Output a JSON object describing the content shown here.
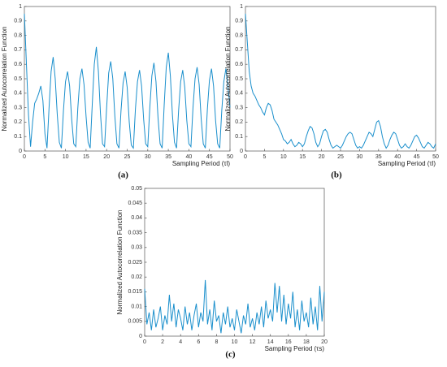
{
  "chart_data": [
    {
      "type": "line",
      "panel_label": "(a)",
      "y_label": "Normalized Autocorrelation Function",
      "x_label": "Sampling Period (τl)",
      "xlim": [
        0,
        50
      ],
      "xticks": [
        0,
        5,
        10,
        15,
        20,
        25,
        30,
        35,
        40,
        45,
        50
      ],
      "ylim": [
        0,
        1
      ],
      "yticks": [
        0,
        0.1,
        0.2,
        0.3,
        0.4,
        0.5,
        0.6,
        0.7,
        0.8,
        0.9,
        1
      ],
      "x": [
        0,
        0.5,
        1,
        1.5,
        2,
        2.5,
        3,
        3.5,
        4,
        4.5,
        5,
        5.5,
        6,
        6.5,
        7,
        7.5,
        8,
        8.5,
        9,
        9.5,
        10,
        10.5,
        11,
        11.5,
        12,
        12.5,
        13,
        13.5,
        14,
        14.5,
        15,
        15.5,
        16,
        16.5,
        17,
        17.5,
        18,
        18.5,
        19,
        19.5,
        20,
        20.5,
        21,
        21.5,
        22,
        22.5,
        23,
        23.5,
        24,
        24.5,
        25,
        25.5,
        26,
        26.5,
        27,
        27.5,
        28,
        28.5,
        29,
        29.5,
        30,
        30.5,
        31,
        31.5,
        32,
        32.5,
        33,
        33.5,
        34,
        34.5,
        35,
        35.5,
        36,
        36.5,
        37,
        37.5,
        38,
        38.5,
        39,
        39.5,
        40,
        40.5,
        41,
        41.5,
        42,
        42.5,
        43,
        43.5,
        44,
        44.5,
        45,
        45.5,
        46,
        46.5,
        47,
        47.5,
        48,
        48.5,
        49,
        49.5,
        50
      ],
      "series": [
        {
          "color": "#1a8fcc",
          "values": [
            0.95,
            0.6,
            0.25,
            0.03,
            0.2,
            0.33,
            0.36,
            0.4,
            0.45,
            0.35,
            0.12,
            0.02,
            0.3,
            0.55,
            0.65,
            0.5,
            0.25,
            0.06,
            0.02,
            0.28,
            0.48,
            0.55,
            0.45,
            0.22,
            0.05,
            0.03,
            0.3,
            0.5,
            0.57,
            0.46,
            0.24,
            0.06,
            0.02,
            0.32,
            0.6,
            0.72,
            0.55,
            0.26,
            0.05,
            0.03,
            0.3,
            0.54,
            0.62,
            0.5,
            0.24,
            0.05,
            0.02,
            0.28,
            0.47,
            0.55,
            0.44,
            0.2,
            0.04,
            0.02,
            0.29,
            0.48,
            0.56,
            0.45,
            0.22,
            0.05,
            0.03,
            0.3,
            0.52,
            0.61,
            0.48,
            0.23,
            0.05,
            0.02,
            0.32,
            0.58,
            0.68,
            0.52,
            0.25,
            0.06,
            0.02,
            0.28,
            0.48,
            0.56,
            0.44,
            0.21,
            0.05,
            0.03,
            0.3,
            0.5,
            0.58,
            0.46,
            0.22,
            0.05,
            0.02,
            0.29,
            0.49,
            0.57,
            0.45,
            0.21,
            0.05,
            0.02,
            0.28,
            0.48,
            0.57,
            0.45,
            0.3
          ]
        }
      ]
    },
    {
      "type": "line",
      "panel_label": "(b)",
      "y_label": "Normalized Autocorrelation Function",
      "x_label": "Sampling Period (τl)",
      "xlim": [
        0,
        50
      ],
      "xticks": [
        0,
        5,
        10,
        15,
        20,
        25,
        30,
        35,
        40,
        45,
        50
      ],
      "ylim": [
        0,
        1
      ],
      "yticks": [
        0,
        0.1,
        0.2,
        0.3,
        0.4,
        0.5,
        0.6,
        0.7,
        0.8,
        0.9,
        1
      ],
      "x": [
        0,
        0.5,
        1,
        1.5,
        2,
        2.5,
        3,
        3.5,
        4,
        4.5,
        5,
        5.5,
        6,
        6.5,
        7,
        7.5,
        8,
        8.5,
        9,
        9.5,
        10,
        10.5,
        11,
        11.5,
        12,
        12.5,
        13,
        13.5,
        14,
        14.5,
        15,
        15.5,
        16,
        16.5,
        17,
        17.5,
        18,
        18.5,
        19,
        19.5,
        20,
        20.5,
        21,
        21.5,
        22,
        22.5,
        23,
        23.5,
        24,
        24.5,
        25,
        25.5,
        26,
        26.5,
        27,
        27.5,
        28,
        28.5,
        29,
        29.5,
        30,
        30.5,
        31,
        31.5,
        32,
        32.5,
        33,
        33.5,
        34,
        34.5,
        35,
        35.5,
        36,
        36.5,
        37,
        37.5,
        38,
        38.5,
        39,
        39.5,
        40,
        40.5,
        41,
        41.5,
        42,
        42.5,
        43,
        43.5,
        44,
        44.5,
        45,
        45.5,
        46,
        46.5,
        47,
        47.5,
        48,
        48.5,
        49,
        49.5,
        50
      ],
      "series": [
        {
          "color": "#1a8fcc",
          "values": [
            0.95,
            0.75,
            0.55,
            0.45,
            0.4,
            0.38,
            0.35,
            0.32,
            0.3,
            0.27,
            0.25,
            0.3,
            0.33,
            0.32,
            0.28,
            0.22,
            0.2,
            0.18,
            0.15,
            0.12,
            0.08,
            0.07,
            0.05,
            0.06,
            0.08,
            0.05,
            0.03,
            0.04,
            0.06,
            0.05,
            0.03,
            0.05,
            0.1,
            0.14,
            0.17,
            0.16,
            0.12,
            0.06,
            0.03,
            0.05,
            0.1,
            0.14,
            0.15,
            0.13,
            0.08,
            0.04,
            0.02,
            0.03,
            0.04,
            0.03,
            0.02,
            0.04,
            0.07,
            0.1,
            0.12,
            0.13,
            0.12,
            0.08,
            0.04,
            0.02,
            0.03,
            0.02,
            0.04,
            0.07,
            0.1,
            0.13,
            0.12,
            0.1,
            0.15,
            0.2,
            0.21,
            0.17,
            0.1,
            0.05,
            0.02,
            0.04,
            0.08,
            0.11,
            0.13,
            0.12,
            0.08,
            0.04,
            0.02,
            0.03,
            0.05,
            0.03,
            0.02,
            0.04,
            0.07,
            0.1,
            0.11,
            0.09,
            0.06,
            0.03,
            0.02,
            0.04,
            0.06,
            0.05,
            0.03,
            0.02,
            0.05
          ]
        }
      ]
    },
    {
      "type": "line",
      "panel_label": "(c)",
      "y_label": "Normalized Autocorrelation Function",
      "x_label": "Sampling Period (τs)",
      "xlim": [
        0,
        20
      ],
      "xticks": [
        0,
        2,
        4,
        6,
        8,
        10,
        12,
        14,
        16,
        18,
        20
      ],
      "ylim": [
        0,
        0.05
      ],
      "yticks": [
        0,
        0.005,
        0.01,
        0.015,
        0.02,
        0.025,
        0.03,
        0.035,
        0.04,
        0.045,
        0.05
      ],
      "x": [
        0,
        0.25,
        0.5,
        0.75,
        1,
        1.25,
        1.5,
        1.75,
        2,
        2.25,
        2.5,
        2.75,
        3,
        3.25,
        3.5,
        3.75,
        4,
        4.25,
        4.5,
        4.75,
        5,
        5.25,
        5.5,
        5.75,
        6,
        6.25,
        6.5,
        6.75,
        7,
        7.25,
        7.5,
        7.75,
        8,
        8.25,
        8.5,
        8.75,
        9,
        9.25,
        9.5,
        9.75,
        10,
        10.25,
        10.5,
        10.75,
        11,
        11.25,
        11.5,
        11.75,
        12,
        12.25,
        12.5,
        12.75,
        13,
        13.25,
        13.5,
        13.75,
        14,
        14.25,
        14.5,
        14.75,
        15,
        15.25,
        15.5,
        15.75,
        16,
        16.25,
        16.5,
        16.75,
        17,
        17.25,
        17.5,
        17.75,
        18,
        18.25,
        18.5,
        18.75,
        19,
        19.25,
        19.5,
        19.75,
        20
      ],
      "series": [
        {
          "color": "#1a8fcc",
          "values": [
            0.016,
            0.004,
            0.008,
            0.002,
            0.009,
            0.003,
            0.006,
            0.01,
            0.002,
            0.007,
            0.004,
            0.014,
            0.005,
            0.011,
            0.003,
            0.009,
            0.006,
            0.002,
            0.01,
            0.004,
            0.008,
            0.002,
            0.007,
            0.011,
            0.003,
            0.008,
            0.005,
            0.019,
            0.004,
            0.009,
            0.002,
            0.012,
            0.005,
            0.007,
            0.001,
            0.008,
            0.004,
            0.01,
            0.003,
            0.006,
            0.002,
            0.009,
            0.005,
            0.001,
            0.007,
            0.004,
            0.011,
            0.003,
            0.006,
            0.002,
            0.008,
            0.004,
            0.01,
            0.003,
            0.012,
            0.006,
            0.009,
            0.005,
            0.018,
            0.008,
            0.017,
            0.005,
            0.014,
            0.004,
            0.011,
            0.006,
            0.015,
            0.003,
            0.009,
            0.002,
            0.012,
            0.005,
            0.008,
            0.003,
            0.013,
            0.004,
            0.01,
            0.002,
            0.017,
            0.005,
            0.015
          ]
        }
      ]
    }
  ]
}
